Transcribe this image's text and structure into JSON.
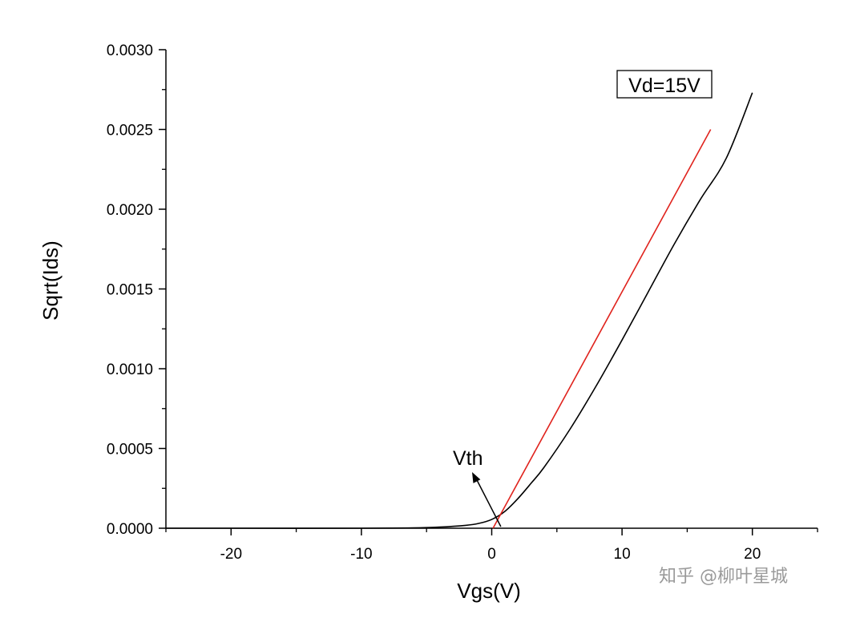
{
  "chart_data": {
    "type": "line",
    "xlabel": "Vgs(V)",
    "ylabel": "Sqrt(Ids)",
    "xlim": [
      -25,
      25
    ],
    "ylim": [
      0,
      0.003
    ],
    "x_ticks": [
      -20,
      -10,
      0,
      10,
      20
    ],
    "x_tick_labels": [
      "-20",
      "-10",
      "0",
      "10",
      "20"
    ],
    "y_ticks": [
      0,
      0.0005,
      0.001,
      0.0015,
      0.002,
      0.0025,
      0.003
    ],
    "y_tick_labels": [
      "0.0000",
      "0.0005",
      "0.0010",
      "0.0015",
      "0.0020",
      "0.0025",
      "0.0030"
    ],
    "grid": false,
    "series": [
      {
        "color": "#000000",
        "x": [
          -25,
          -20,
          -10,
          -6,
          -4,
          -2,
          -1,
          0,
          1,
          2,
          3,
          4,
          6,
          8,
          10,
          12,
          14,
          16,
          18,
          20
        ],
        "y": [
          0,
          0,
          0,
          2e-06,
          7e-06,
          1.8e-05,
          3e-05,
          5.5e-05,
          0.000105,
          0.000185,
          0.00028,
          0.00038,
          0.00062,
          0.00089,
          0.00118,
          0.00148,
          0.00178,
          0.00206,
          0.00232,
          0.00273
        ]
      },
      {
        "color": "#e0231d",
        "x": [
          0.1,
          16.8
        ],
        "y": [
          0,
          0.0025
        ]
      }
    ],
    "annotations": [
      {
        "text": "Vd=15V",
        "boxed": true,
        "position": "top-right"
      },
      {
        "text": "Vth",
        "arrow_to_x": 0.7,
        "arrow_to_y": 0
      }
    ]
  },
  "watermark": "知乎 @柳叶星城"
}
